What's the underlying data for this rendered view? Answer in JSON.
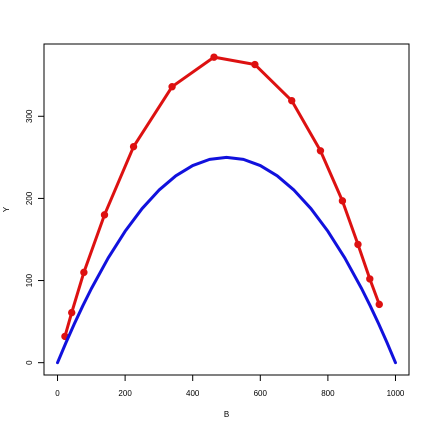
{
  "chart_data": {
    "type": "line",
    "xlabel": "B",
    "ylabel": "Y",
    "xlim": [
      -40,
      1040
    ],
    "ylim": [
      -15,
      388
    ],
    "xticks": [
      0,
      200,
      400,
      600,
      800,
      1000
    ],
    "yticks": [
      0,
      100,
      200,
      300
    ],
    "xtick_labels": [
      "0",
      "200",
      "400",
      "600",
      "800",
      "1000"
    ],
    "ytick_labels": [
      "0",
      "100",
      "200",
      "300"
    ],
    "grid": false,
    "legend": "none",
    "series": [
      {
        "color": "#dd1111",
        "style": "line+points",
        "x": [
          22,
          42,
          78,
          139,
          225,
          339,
          463,
          584,
          693,
          778,
          843,
          889,
          924,
          952
        ],
        "y": [
          32,
          61,
          110,
          180,
          263,
          336,
          372,
          363,
          319,
          258,
          197,
          144,
          102,
          71
        ]
      },
      {
        "color": "#1111dd",
        "style": "line",
        "function": "y = x*(1000-x)/1000",
        "x": [
          0,
          25,
          50,
          75,
          100,
          150,
          200,
          250,
          300,
          350,
          400,
          450,
          500,
          550,
          600,
          650,
          700,
          750,
          800,
          850,
          900,
          925,
          950,
          975,
          1000
        ],
        "y": [
          0,
          24.4,
          47.5,
          69.4,
          90,
          127.5,
          160,
          187.5,
          210,
          227.5,
          240,
          247.5,
          250,
          247.5,
          240,
          227.5,
          210,
          187.5,
          160,
          127.5,
          90,
          69.4,
          47.5,
          24.4,
          0
        ]
      }
    ]
  }
}
